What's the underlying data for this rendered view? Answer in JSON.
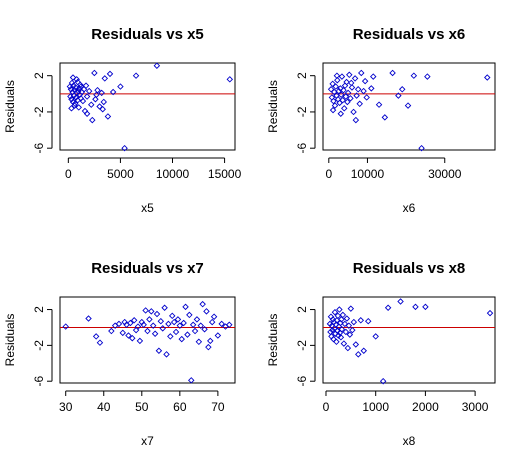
{
  "chart_data": [
    {
      "type": "scatter",
      "title": "Residuals vs x5",
      "xlabel": "x5",
      "ylabel": "Residuals",
      "xlim": [
        -800,
        16000
      ],
      "ylim": [
        -6.2,
        3.4
      ],
      "xticks": [
        0,
        5000,
        10000,
        15000
      ],
      "yticks": [
        -6,
        -2,
        2
      ],
      "reference_line_y": 0,
      "points": [
        [
          150,
          0.8
        ],
        [
          200,
          -0.3
        ],
        [
          250,
          0.5
        ],
        [
          300,
          -0.6
        ],
        [
          350,
          1.2
        ],
        [
          400,
          0.2
        ],
        [
          450,
          -0.9
        ],
        [
          500,
          0.9
        ],
        [
          550,
          -0.2
        ],
        [
          600,
          0.4
        ],
        [
          650,
          -1.1
        ],
        [
          700,
          0.7
        ],
        [
          750,
          -0.4
        ],
        [
          800,
          1.6
        ],
        [
          850,
          0.1
        ],
        [
          900,
          -0.7
        ],
        [
          950,
          0.3
        ],
        [
          1000,
          -1.5
        ],
        [
          1050,
          0.6
        ],
        [
          1100,
          -0.1
        ],
        [
          1150,
          1.0
        ],
        [
          1200,
          -0.5
        ],
        [
          1300,
          0.2
        ],
        [
          1400,
          -0.8
        ],
        [
          1500,
          0.5
        ],
        [
          1600,
          -1.9
        ],
        [
          1700,
          0.9
        ],
        [
          1800,
          -0.3
        ],
        [
          2000,
          0.3
        ],
        [
          2200,
          -1.2
        ],
        [
          2300,
          -2.9
        ],
        [
          2500,
          2.3
        ],
        [
          2600,
          -0.6
        ],
        [
          2800,
          0.4
        ],
        [
          3000,
          -1.4
        ],
        [
          3200,
          0.1
        ],
        [
          3400,
          -0.9
        ],
        [
          3500,
          1.7
        ],
        [
          3800,
          -2.5
        ],
        [
          4000,
          2.2
        ],
        [
          4300,
          0.2
        ],
        [
          5000,
          0.8
        ],
        [
          5400,
          -6.0
        ],
        [
          6500,
          2.0
        ],
        [
          8500,
          3.1
        ],
        [
          15500,
          1.6
        ],
        [
          300,
          -1.6
        ],
        [
          450,
          1.8
        ],
        [
          600,
          -1.3
        ],
        [
          900,
          1.3
        ],
        [
          1200,
          0.8
        ],
        [
          1800,
          -2.2
        ],
        [
          2700,
          -0.1
        ],
        [
          3300,
          -1.7
        ]
      ]
    },
    {
      "type": "scatter",
      "title": "Residuals vs x6",
      "xlabel": "x6",
      "ylabel": "Residuals",
      "xlim": [
        -1500,
        43000
      ],
      "ylim": [
        -6.2,
        3.4
      ],
      "xticks": [
        0,
        10000,
        30000
      ],
      "yticks": [
        -6,
        -2,
        2
      ],
      "reference_line_y": 0,
      "points": [
        [
          600,
          0.5
        ],
        [
          800,
          -0.4
        ],
        [
          1000,
          1.1
        ],
        [
          1200,
          -0.8
        ],
        [
          1400,
          0.2
        ],
        [
          1600,
          -1.3
        ],
        [
          1800,
          0.8
        ],
        [
          2000,
          -0.2
        ],
        [
          2200,
          1.5
        ],
        [
          2400,
          -0.6
        ],
        [
          2600,
          0.3
        ],
        [
          2800,
          -1.0
        ],
        [
          3000,
          0.6
        ],
        [
          3200,
          -0.1
        ],
        [
          3400,
          1.9
        ],
        [
          3600,
          -0.7
        ],
        [
          3800,
          0.4
        ],
        [
          4000,
          -1.6
        ],
        [
          4200,
          0.9
        ],
        [
          4400,
          -0.3
        ],
        [
          4600,
          1.3
        ],
        [
          4800,
          -0.9
        ],
        [
          5000,
          0.1
        ],
        [
          5300,
          2.1
        ],
        [
          5600,
          -0.5
        ],
        [
          6000,
          0.7
        ],
        [
          6400,
          -2.0
        ],
        [
          6800,
          1.7
        ],
        [
          7200,
          -0.2
        ],
        [
          7600,
          0.5
        ],
        [
          8000,
          -1.1
        ],
        [
          8400,
          2.3
        ],
        [
          9000,
          0.3
        ],
        [
          9800,
          -0.4
        ],
        [
          11000,
          0.6
        ],
        [
          11500,
          1.9
        ],
        [
          13000,
          -1.2
        ],
        [
          14500,
          -2.6
        ],
        [
          16500,
          2.3
        ],
        [
          18000,
          -0.2
        ],
        [
          19000,
          0.5
        ],
        [
          20500,
          -1.3
        ],
        [
          22000,
          2.0
        ],
        [
          24000,
          -6.0
        ],
        [
          25500,
          1.9
        ],
        [
          41000,
          1.8
        ],
        [
          1100,
          -1.8
        ],
        [
          2100,
          2.0
        ],
        [
          3100,
          -2.2
        ],
        [
          5800,
          1.2
        ],
        [
          7000,
          -2.9
        ],
        [
          9400,
          1.4
        ]
      ]
    },
    {
      "type": "scatter",
      "title": "Residuals vs x7",
      "xlabel": "x7",
      "ylabel": "Residuals",
      "xlim": [
        28.5,
        74.5
      ],
      "ylim": [
        -6.2,
        3.4
      ],
      "xticks": [
        30,
        40,
        50,
        60,
        70
      ],
      "yticks": [
        -6,
        -2,
        2
      ],
      "reference_line_y": 0,
      "points": [
        [
          30,
          0.1
        ],
        [
          36,
          1.0
        ],
        [
          38,
          -1.0
        ],
        [
          39,
          -1.7
        ],
        [
          42,
          -0.4
        ],
        [
          43,
          0.2
        ],
        [
          44,
          0.4
        ],
        [
          45,
          -0.6
        ],
        [
          45.5,
          0.6
        ],
        [
          46,
          0.3
        ],
        [
          46.5,
          -0.9
        ],
        [
          47,
          0.5
        ],
        [
          47.5,
          -1.2
        ],
        [
          48,
          0.8
        ],
        [
          48.5,
          -0.3
        ],
        [
          49,
          0.1
        ],
        [
          49.5,
          -1.5
        ],
        [
          50,
          0.6
        ],
        [
          50.5,
          0.3
        ],
        [
          51,
          1.9
        ],
        [
          51.5,
          -0.4
        ],
        [
          52,
          0.9
        ],
        [
          52.5,
          1.8
        ],
        [
          53,
          0.2
        ],
        [
          53.5,
          -0.7
        ],
        [
          54,
          1.5
        ],
        [
          54.5,
          -2.6
        ],
        [
          55,
          0.7
        ],
        [
          55.5,
          -0.1
        ],
        [
          56,
          2.2
        ],
        [
          56.5,
          -3.0
        ],
        [
          57,
          0.4
        ],
        [
          57.5,
          -1.0
        ],
        [
          58,
          1.3
        ],
        [
          58.5,
          0.6
        ],
        [
          59,
          -0.5
        ],
        [
          59.5,
          0.9
        ],
        [
          60,
          0.2
        ],
        [
          60.5,
          -1.3
        ],
        [
          61,
          0.5
        ],
        [
          61.5,
          2.3
        ],
        [
          62,
          -0.8
        ],
        [
          62.5,
          1.4
        ],
        [
          63,
          -5.9
        ],
        [
          63.5,
          0.3
        ],
        [
          64,
          -0.4
        ],
        [
          64.5,
          0.9
        ],
        [
          65,
          -1.6
        ],
        [
          65.5,
          0.2
        ],
        [
          66,
          2.6
        ],
        [
          66.5,
          -0.2
        ],
        [
          67,
          1.8
        ],
        [
          67.5,
          -2.2
        ],
        [
          68,
          -1.5
        ],
        [
          68.5,
          0.6
        ],
        [
          69,
          1.2
        ],
        [
          70,
          -0.9
        ],
        [
          71,
          0.4
        ],
        [
          72,
          0.1
        ],
        [
          73,
          0.3
        ]
      ]
    },
    {
      "type": "scatter",
      "title": "Residuals vs x8",
      "xlabel": "x8",
      "ylabel": "Residuals",
      "xlim": [
        -60,
        3400
      ],
      "ylim": [
        -6.2,
        3.4
      ],
      "xticks": [
        0,
        1000,
        2000,
        3000
      ],
      "yticks": [
        -6,
        -2,
        2
      ],
      "reference_line_y": 0,
      "points": [
        [
          80,
          0.4
        ],
        [
          90,
          -0.5
        ],
        [
          100,
          1.2
        ],
        [
          110,
          -1.0
        ],
        [
          120,
          0.2
        ],
        [
          130,
          -0.3
        ],
        [
          140,
          0.9
        ],
        [
          150,
          -1.3
        ],
        [
          160,
          0.6
        ],
        [
          170,
          -0.1
        ],
        [
          180,
          1.7
        ],
        [
          190,
          -0.7
        ],
        [
          200,
          0.3
        ],
        [
          210,
          -1.6
        ],
        [
          220,
          0.8
        ],
        [
          230,
          -0.4
        ],
        [
          240,
          1.3
        ],
        [
          250,
          -0.9
        ],
        [
          260,
          0.1
        ],
        [
          270,
          2.0
        ],
        [
          280,
          -0.6
        ],
        [
          290,
          0.5
        ],
        [
          300,
          -1.1
        ],
        [
          310,
          0.9
        ],
        [
          320,
          -0.2
        ],
        [
          340,
          1.4
        ],
        [
          360,
          -1.8
        ],
        [
          380,
          0.4
        ],
        [
          400,
          -0.5
        ],
        [
          420,
          1.0
        ],
        [
          440,
          -2.3
        ],
        [
          460,
          0.2
        ],
        [
          480,
          -0.8
        ],
        [
          500,
          2.1
        ],
        [
          530,
          -0.3
        ],
        [
          560,
          0.6
        ],
        [
          600,
          -1.9
        ],
        [
          650,
          -3.0
        ],
        [
          700,
          0.8
        ],
        [
          760,
          -2.6
        ],
        [
          850,
          0.7
        ],
        [
          1000,
          -1.0
        ],
        [
          1150,
          -6.0
        ],
        [
          1250,
          2.2
        ],
        [
          1500,
          2.9
        ],
        [
          1800,
          2.3
        ],
        [
          2000,
          2.3
        ],
        [
          3300,
          1.6
        ]
      ]
    }
  ]
}
